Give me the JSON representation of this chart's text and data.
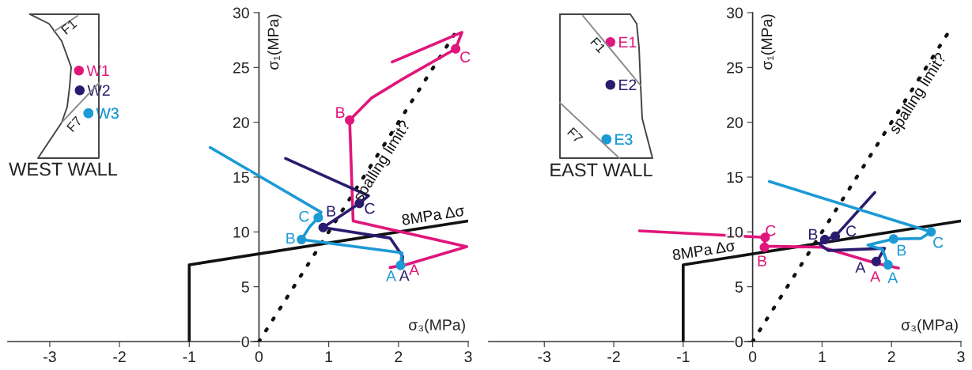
{
  "chart_data": [
    {
      "type": "line",
      "title": "WEST WALL",
      "xlabel": "σ₃(MPa)",
      "ylabel": "σ₁(MPa)",
      "xlim": [
        -3.6,
        3
      ],
      "ylim": [
        0,
        30
      ],
      "xticks": [
        -3,
        -2,
        -1,
        0,
        1,
        2,
        3
      ],
      "yticks": [
        0,
        5,
        10,
        15,
        20,
        25,
        30
      ],
      "grid": false,
      "legend": "top left",
      "marker": "none",
      "annotations": [
        "F1",
        "F7",
        {
          "text": "A",
          "x": 2.1,
          "y": 7.0
        },
        {
          "text": "B",
          "x": 1.3,
          "y": 20.2
        },
        {
          "text": "C",
          "x": 2.82,
          "y": 26.7
        },
        {
          "text": "A",
          "x": 2.05,
          "y": 7.05
        },
        {
          "text": "B",
          "x": 0.92,
          "y": 10.4
        },
        {
          "text": "C",
          "x": 1.44,
          "y": 12.6
        },
        {
          "text": "A",
          "x": 2.03,
          "y": 6.95
        },
        {
          "text": "B",
          "x": 0.61,
          "y": 9.3
        },
        {
          "text": "C",
          "x": 0.85,
          "y": 11.3
        }
      ],
      "series": [
        {
          "name": "8MPa Δσ",
          "color": "#111111",
          "line_style": "solid",
          "x": [
            -1,
            -1,
            3
          ],
          "values": [
            0,
            7,
            11
          ]
        },
        {
          "name": "spalling limit?",
          "color": "#111111",
          "line_style": "dotted",
          "x": [
            0,
            2.8
          ],
          "values": [
            0,
            28
          ]
        },
        {
          "name": "W1",
          "color": "#e0167c",
          "line_style": "solid",
          "x": [
            1.88,
            2.1,
            2.98,
            1.35,
            1.3,
            1.61,
            2.1,
            2.82,
            2.91,
            1.91
          ],
          "values": [
            6.75,
            7.0,
            8.65,
            11.0,
            20.2,
            22.2,
            24.1,
            26.7,
            28.2,
            25.5
          ]
        },
        {
          "name": "W2",
          "color": "#2b1b6e",
          "line_style": "solid",
          "x": [
            0.38,
            1.57,
            1.44,
            0.92,
            1.88,
            2.06,
            2.05
          ],
          "values": [
            16.7,
            13.3,
            12.6,
            10.4,
            9.44,
            7.77,
            7.05
          ]
        },
        {
          "name": "W3",
          "color": "#1c9ad6",
          "line_style": "solid",
          "x": [
            -0.7,
            0.89,
            0.85,
            0.73,
            0.61,
            2.05,
            2.03
          ],
          "values": [
            17.7,
            11.8,
            11.3,
            10.5,
            9.3,
            8.1,
            6.95
          ]
        },
        {
          "type": "scatter",
          "color": "#e0167c",
          "marker": "circle",
          "x": [
            1.3,
            2.82
          ],
          "values": [
            20.2,
            26.7
          ]
        },
        {
          "type": "scatter",
          "color": "#2b1b6e",
          "marker": "circle",
          "x": [
            0.92,
            1.44
          ],
          "values": [
            10.4,
            12.6
          ]
        },
        {
          "type": "scatter",
          "color": "#1c9ad6",
          "marker": "circle",
          "x": [
            2.03,
            0.61,
            0.85
          ],
          "values": [
            6.95,
            9.3,
            11.3
          ]
        }
      ]
    },
    {
      "type": "line",
      "title": "EAST WALL",
      "xlabel": "σ₃(MPa)",
      "ylabel": "σ₁(MPa)",
      "xlim": [
        -3.8,
        3
      ],
      "ylim": [
        0,
        30
      ],
      "xticks": [
        -3,
        -2,
        -1,
        0,
        1,
        2,
        3
      ],
      "yticks": [
        0,
        5,
        10,
        15,
        20,
        25,
        30
      ],
      "grid": false,
      "legend": "top left",
      "marker": "none",
      "annotations": [
        "F1",
        "F7",
        {
          "text": "A",
          "x": 1.8,
          "y": 7.1
        },
        {
          "text": "B",
          "x": 0.17,
          "y": 8.6
        },
        {
          "text": "C",
          "x": 0.18,
          "y": 9.5
        },
        {
          "text": "A",
          "x": 1.78,
          "y": 7.3
        },
        {
          "text": "B",
          "x": 1.04,
          "y": 9.3
        },
        {
          "text": "C",
          "x": 1.19,
          "y": 9.6
        },
        {
          "text": "A",
          "x": 1.95,
          "y": 7.0
        },
        {
          "text": "B",
          "x": 2.03,
          "y": 9.36
        },
        {
          "text": "C",
          "x": 2.57,
          "y": 10.0
        }
      ],
      "series": [
        {
          "name": "8MPa Δσ",
          "color": "#111111",
          "line_style": "solid",
          "x": [
            -1,
            -1,
            3
          ],
          "values": [
            0,
            7,
            11
          ]
        },
        {
          "name": "spalling limit?",
          "color": "#111111",
          "line_style": "dotted",
          "x": [
            0,
            2.8
          ],
          "values": [
            0,
            28
          ]
        },
        {
          "name": "E1",
          "color": "#e0167c",
          "line_style": "solid",
          "x": [
            -1.63,
            0.18,
            0.17,
            1.0,
            1.8,
            2.1
          ],
          "values": [
            10.1,
            9.5,
            8.7,
            8.6,
            7.1,
            6.7
          ]
        },
        {
          "name": "E2",
          "color": "#2b1b6e",
          "line_style": "solid",
          "x": [
            1.76,
            1.19,
            1.04,
            0.96,
            1.09,
            1.9,
            1.8,
            1.78
          ],
          "values": [
            13.6,
            9.6,
            9.3,
            8.9,
            8.3,
            8.5,
            7.4,
            7.3
          ]
        },
        {
          "name": "E3",
          "color": "#1c9ad6",
          "line_style": "solid",
          "x": [
            0.24,
            2.57,
            2.42,
            2.03,
            1.66,
            1.87,
            1.95
          ],
          "values": [
            14.6,
            10.0,
            9.4,
            9.36,
            8.8,
            8.4,
            7.0
          ]
        },
        {
          "type": "scatter",
          "color": "#e0167c",
          "marker": "circle",
          "x": [
            0.17,
            0.18
          ],
          "values": [
            8.6,
            9.5
          ]
        },
        {
          "type": "scatter",
          "color": "#2b1b6e",
          "marker": "circle",
          "x": [
            1.78,
            1.04,
            1.19
          ],
          "values": [
            7.3,
            9.3,
            9.6
          ]
        },
        {
          "type": "scatter",
          "color": "#1c9ad6",
          "marker": "circle",
          "x": [
            1.95,
            2.03,
            2.57
          ],
          "values": [
            7.0,
            9.36,
            10.0
          ]
        }
      ]
    }
  ]
}
